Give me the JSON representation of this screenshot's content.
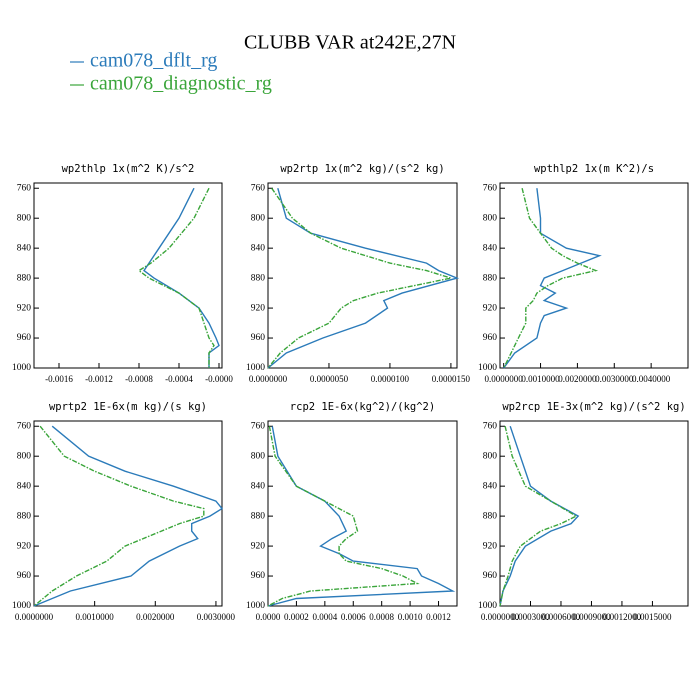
{
  "title": "CLUBB VAR at242E,27N",
  "legend": [
    {
      "name": "cam078_dflt_rg",
      "color": "#2b7bba"
    },
    {
      "name": "cam078_diagnostic_rg",
      "color": "#3aa53a"
    }
  ],
  "chart_data": [
    {
      "type": "line",
      "title": "wp2thlp  1x(m^2 K)/s^2",
      "invert_y": true,
      "y": [
        760,
        800,
        840,
        860,
        870,
        880,
        900,
        920,
        940,
        960,
        970,
        980,
        1000
      ],
      "series": [
        {
          "color": "#2b7bba",
          "values": [
            -0.00025,
            -0.0004,
            -0.0006,
            -0.0007,
            -0.00075,
            -0.00065,
            -0.0004,
            -0.0002,
            -0.0001,
            -3e-05,
            0,
            -0.0001,
            -0.0001
          ]
        },
        {
          "color": "#3aa53a",
          "dashed": true,
          "values": [
            -0.0001,
            -0.00025,
            -0.0005,
            -0.00068,
            -0.0008,
            -0.0007,
            -0.0004,
            -0.0002,
            -0.00015,
            -0.0001,
            -5e-05,
            -0.0001,
            -0.0001
          ]
        }
      ],
      "xlim": [
        -0.00185,
        3e-05
      ],
      "xticks": [
        -0.0016,
        -0.0012,
        -0.0008,
        -0.0004,
        {
          "value": 0,
          "label": "-0.0000"
        }
      ],
      "ylim": [
        753,
        1000
      ],
      "yticks": [
        760,
        800,
        840,
        880,
        920,
        960,
        1000
      ]
    },
    {
      "type": "line",
      "title": "wp2rtp  1x(m^2 kg)/(s^2 kg)",
      "invert_y": true,
      "y": [
        760,
        800,
        820,
        840,
        860,
        870,
        880,
        900,
        910,
        920,
        940,
        960,
        980,
        1000
      ],
      "series": [
        {
          "color": "#2b7bba",
          "values": [
            8e-07,
            1.5e-06,
            3.5e-06,
            8e-06,
            1.3e-05,
            1.4e-05,
            1.55e-05,
            1.1e-05,
            9.5e-06,
            9.8e-06,
            8e-06,
            4.5e-06,
            1.5e-06,
            0
          ]
        },
        {
          "color": "#3aa53a",
          "dashed": true,
          "values": [
            3e-07,
            2e-06,
            3.5e-06,
            6e-06,
            1e-05,
            1.3e-05,
            1.5e-05,
            9e-06,
            7e-06,
            6e-06,
            5e-06,
            2.5e-06,
            1e-06,
            0
          ]
        }
      ],
      "xlim": [
        0,
        1.55e-05
      ],
      "xticks": [
        {
          "value": 0,
          "label": "0.0000000"
        },
        {
          "value": 5e-06,
          "label": "0.0000050"
        },
        {
          "value": 1e-05,
          "label": "0.0000100"
        },
        {
          "value": 1.5e-05,
          "label": "0.0000150"
        }
      ],
      "ylim": [
        753,
        1000
      ],
      "yticks": [
        760,
        800,
        840,
        880,
        920,
        960,
        1000
      ]
    },
    {
      "type": "line",
      "title": "wpthlp2  1x(m K^2)/s",
      "invert_y": true,
      "y": [
        760,
        800,
        820,
        840,
        850,
        860,
        870,
        880,
        890,
        900,
        910,
        920,
        930,
        940,
        960,
        980,
        1000
      ],
      "series": [
        {
          "color": "#2b7bba",
          "values": [
            0.0009,
            0.001,
            0.001,
            0.0017,
            0.0026,
            0.0021,
            0.0016,
            0.0011,
            0.001,
            0.0014,
            0.0011,
            0.0017,
            0.0011,
            0.001,
            0.0009,
            0.0003,
            0
          ]
        },
        {
          "color": "#3aa53a",
          "dashed": true,
          "values": [
            0.0005,
            0.0007,
            0.001,
            0.0013,
            0.0016,
            0.002,
            0.0025,
            0.0016,
            0.0012,
            0.0009,
            0.0008,
            0.0006,
            0.0006,
            0.0006,
            0.0004,
            0.0002,
            0
          ]
        }
      ],
      "xlim": [
        -0.0001,
        0.005
      ],
      "xticks": [
        {
          "value": 0,
          "label": "0.0000000"
        },
        {
          "value": 0.001,
          "label": "0.0010000"
        },
        {
          "value": 0.002,
          "label": "0.0020000"
        },
        {
          "value": 0.003,
          "label": "0.0030000"
        },
        {
          "value": 0.004,
          "label": "0.0040000"
        }
      ],
      "ylim": [
        753,
        1000
      ],
      "yticks": [
        760,
        800,
        840,
        880,
        920,
        960,
        1000
      ]
    },
    {
      "type": "line",
      "title": "wprtp2  1E-6x(m kg)/(s kg)",
      "invert_y": true,
      "y": [
        760,
        800,
        820,
        840,
        860,
        870,
        880,
        890,
        900,
        910,
        920,
        940,
        960,
        980,
        1000
      ],
      "series": [
        {
          "color": "#2b7bba",
          "values": [
            0.0003,
            0.0009,
            0.0015,
            0.0023,
            0.003,
            0.0031,
            0.0029,
            0.0026,
            0.0026,
            0.0027,
            0.0024,
            0.0019,
            0.0016,
            0.0006,
            0
          ]
        },
        {
          "color": "#3aa53a",
          "dashed": true,
          "values": [
            0.0001,
            0.0005,
            0.001,
            0.0016,
            0.0023,
            0.0028,
            0.0028,
            0.0024,
            0.0021,
            0.0018,
            0.0015,
            0.0012,
            0.0007,
            0.0003,
            0
          ]
        }
      ],
      "xlim": [
        0,
        0.0031
      ],
      "xticks": [
        {
          "value": 0,
          "label": "0.0000000"
        },
        {
          "value": 0.001,
          "label": "0.0010000"
        },
        {
          "value": 0.002,
          "label": "0.0020000"
        },
        {
          "value": 0.003,
          "label": "0.0030000"
        }
      ],
      "ylim": [
        753,
        1000
      ],
      "yticks": [
        760,
        800,
        840,
        880,
        920,
        960,
        1000
      ]
    },
    {
      "type": "line",
      "title": "rcp2  1E-6x(kg^2)/(kg^2)",
      "invert_y": true,
      "y": [
        760,
        800,
        840,
        860,
        880,
        900,
        910,
        920,
        930,
        940,
        950,
        960,
        970,
        980,
        990,
        1000
      ],
      "series": [
        {
          "color": "#2b7bba",
          "values": [
            3e-05,
            7e-05,
            0.0002,
            0.0004,
            0.0005,
            0.00055,
            0.00045,
            0.00037,
            0.0005,
            0.0006,
            0.00105,
            0.00108,
            0.0012,
            0.0013,
            0.0002,
            0
          ]
        },
        {
          "color": "#3aa53a",
          "dashed": true,
          "values": [
            1e-05,
            5e-05,
            0.0002,
            0.0004,
            0.0006,
            0.00063,
            0.00055,
            0.0005,
            0.0005,
            0.00055,
            0.0008,
            0.00095,
            0.00105,
            0.0003,
            0.0001,
            0
          ]
        }
      ],
      "xlim": [
        0,
        0.00133
      ],
      "xticks": [
        {
          "value": 0,
          "label": "0.0000"
        },
        0.0002,
        0.0004,
        0.0006,
        0.0008,
        {
          "value": 0.001,
          "label": "0.0010"
        },
        0.0012
      ],
      "ylim": [
        753,
        1000
      ],
      "yticks": [
        760,
        800,
        840,
        880,
        920,
        960,
        1000
      ]
    },
    {
      "type": "line",
      "title": "wp2rcp  1E-3x(m^2 kg)/(s^2 kg)",
      "invert_y": true,
      "y": [
        760,
        800,
        840,
        860,
        880,
        890,
        900,
        920,
        940,
        960,
        980,
        1000
      ],
      "series": [
        {
          "color": "#2b7bba",
          "values": [
            0.0001,
            0.0002,
            0.0003,
            0.0005,
            0.00077,
            0.0007,
            0.0005,
            0.00025,
            0.00015,
            0.0001,
            3e-05,
            0
          ]
        },
        {
          "color": "#3aa53a",
          "dashed": true,
          "values": [
            5e-05,
            0.00012,
            0.00025,
            0.0005,
            0.00075,
            0.0006,
            0.0004,
            0.0002,
            0.00012,
            8e-05,
            3e-05,
            0
          ]
        }
      ],
      "xlim": [
        0,
        0.00185
      ],
      "xticks": [
        {
          "value": 0,
          "label": "0.0000000"
        },
        {
          "value": 0.0003,
          "label": "0.0003000"
        },
        {
          "value": 0.0006,
          "label": "0.0006000"
        },
        {
          "value": 0.0009,
          "label": "0.0009000"
        },
        {
          "value": 0.0012,
          "label": "0.0012000"
        },
        {
          "value": 0.0015,
          "label": "0.0015000"
        }
      ],
      "ylim": [
        753,
        1000
      ],
      "yticks": [
        760,
        800,
        840,
        880,
        920,
        960,
        1000
      ]
    }
  ]
}
